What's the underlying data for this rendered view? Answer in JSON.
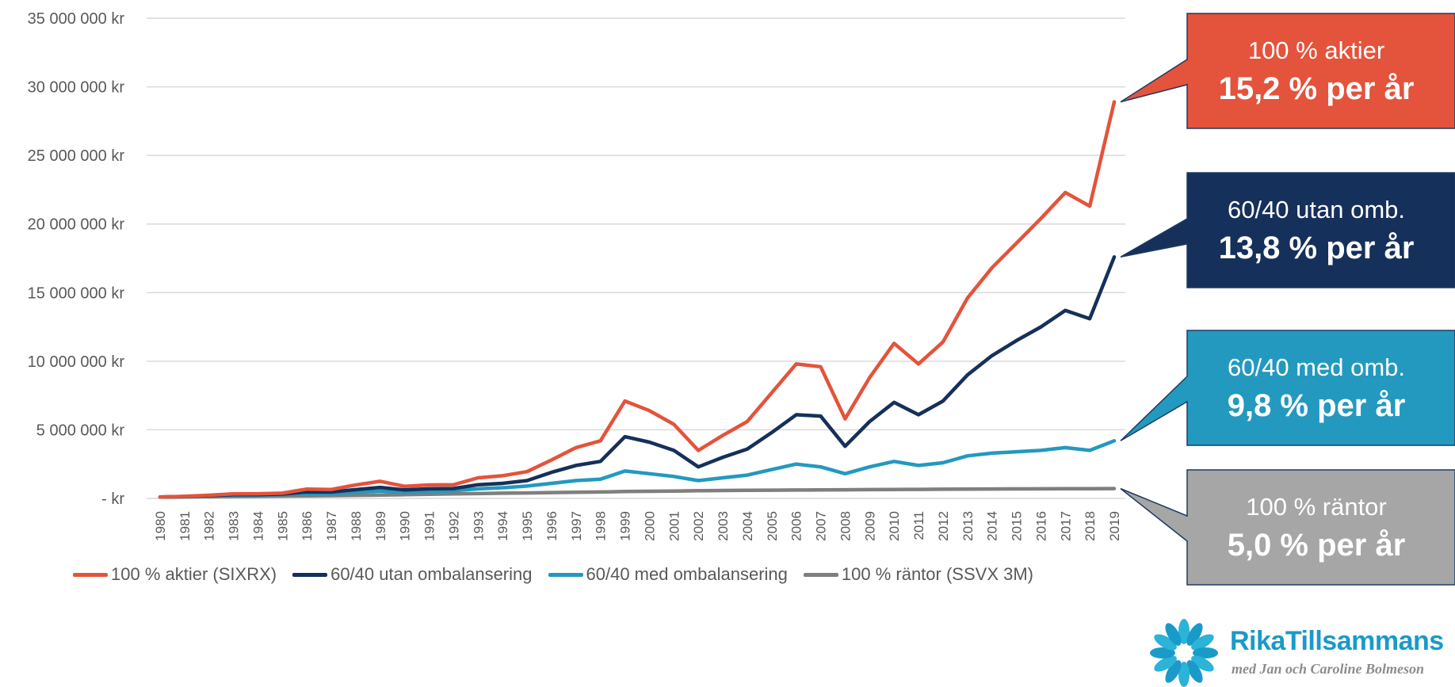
{
  "colors": {
    "aktier": "#e4533b",
    "utan": "#15305a",
    "med": "#2399bf",
    "rantor": "#7f7f7f",
    "callout_rantor_bg": "#a6a6a6",
    "grid": "#d9d9d9"
  },
  "chart_data": {
    "type": "line",
    "x": [
      "1980",
      "1981",
      "1982",
      "1983",
      "1984",
      "1985",
      "1986",
      "1987",
      "1988",
      "1989",
      "1990",
      "1991",
      "1992",
      "1993",
      "1994",
      "1995",
      "1996",
      "1997",
      "1998",
      "1999",
      "2000",
      "2001",
      "2002",
      "2003",
      "2004",
      "2005",
      "2006",
      "2007",
      "2008",
      "2009",
      "2010",
      "2011",
      "2012",
      "2013",
      "2014",
      "2015",
      "2016",
      "2017",
      "2018",
      "2019"
    ],
    "y_ticks": [
      "-   kr",
      "5 000 000 kr",
      "10 000 000 kr",
      "15 000 000 kr",
      "20 000 000 kr",
      "25 000 000 kr",
      "30 000 000 kr",
      "35 000 000 kr"
    ],
    "ylim": [
      0,
      35000000
    ],
    "grid": true,
    "legend_position": "bottom",
    "series": [
      {
        "name": "100 % aktier (SIXRX)",
        "color_key": "aktier",
        "values": [
          100000,
          150000,
          230000,
          330000,
          340000,
          380000,
          680000,
          650000,
          980000,
          1250000,
          880000,
          980000,
          1000000,
          1500000,
          1650000,
          1950000,
          2800000,
          3700000,
          4200000,
          7100000,
          6400000,
          5400000,
          3500000,
          4600000,
          5600000,
          7700000,
          9800000,
          9600000,
          5800000,
          8800000,
          11300000,
          9800000,
          11400000,
          14600000,
          16800000,
          18600000,
          20400000,
          22300000,
          21300000,
          28900000
        ]
      },
      {
        "name": "60/40 utan ombalansering",
        "color_key": "utan",
        "values": [
          100000,
          140000,
          200000,
          270000,
          280000,
          320000,
          480000,
          470000,
          640000,
          800000,
          620000,
          700000,
          720000,
          1000000,
          1100000,
          1300000,
          1900000,
          2400000,
          2700000,
          4500000,
          4100000,
          3500000,
          2300000,
          3000000,
          3600000,
          4800000,
          6100000,
          6000000,
          3800000,
          5600000,
          7000000,
          6100000,
          7100000,
          9000000,
          10400000,
          11500000,
          12500000,
          13700000,
          13100000,
          17600000
        ]
      },
      {
        "name": "60/40 med ombalansering",
        "color_key": "med",
        "values": [
          100000,
          130000,
          170000,
          220000,
          240000,
          270000,
          360000,
          360000,
          450000,
          530000,
          450000,
          510000,
          560000,
          700000,
          780000,
          900000,
          1100000,
          1300000,
          1400000,
          2000000,
          1800000,
          1600000,
          1300000,
          1500000,
          1700000,
          2100000,
          2500000,
          2300000,
          1800000,
          2300000,
          2700000,
          2400000,
          2600000,
          3100000,
          3300000,
          3400000,
          3500000,
          3700000,
          3500000,
          4200000
        ]
      },
      {
        "name": "100 % räntor (SSVX 3M)",
        "color_key": "rantor",
        "values": [
          100000,
          115000,
          130000,
          145000,
          160000,
          175000,
          190000,
          205000,
          225000,
          250000,
          270000,
          300000,
          330000,
          350000,
          380000,
          400000,
          430000,
          450000,
          470000,
          500000,
          520000,
          540000,
          560000,
          580000,
          590000,
          600000,
          610000,
          620000,
          630000,
          640000,
          650000,
          660000,
          670000,
          680000,
          690000,
          695000,
          700000,
          705000,
          710000,
          715000
        ]
      }
    ]
  },
  "callouts": [
    {
      "line1": "100 % aktier",
      "line2": "15,2 % per år",
      "series": "aktier",
      "bg": "#e4533b"
    },
    {
      "line1": "60/40 utan omb.",
      "line2": "13,8 % per år",
      "series": "utan",
      "bg": "#15305a"
    },
    {
      "line1": "60/40 med omb.",
      "line2": "9,8 % per år",
      "series": "med",
      "bg": "#2399bf"
    },
    {
      "line1": "100 % räntor",
      "line2": "5,0 % per år",
      "series": "rantor",
      "bg": "#a6a6a6"
    }
  ],
  "logo": {
    "name": "RikaTillsammans",
    "subtitle": "med Jan och Caroline Bolmeson"
  }
}
